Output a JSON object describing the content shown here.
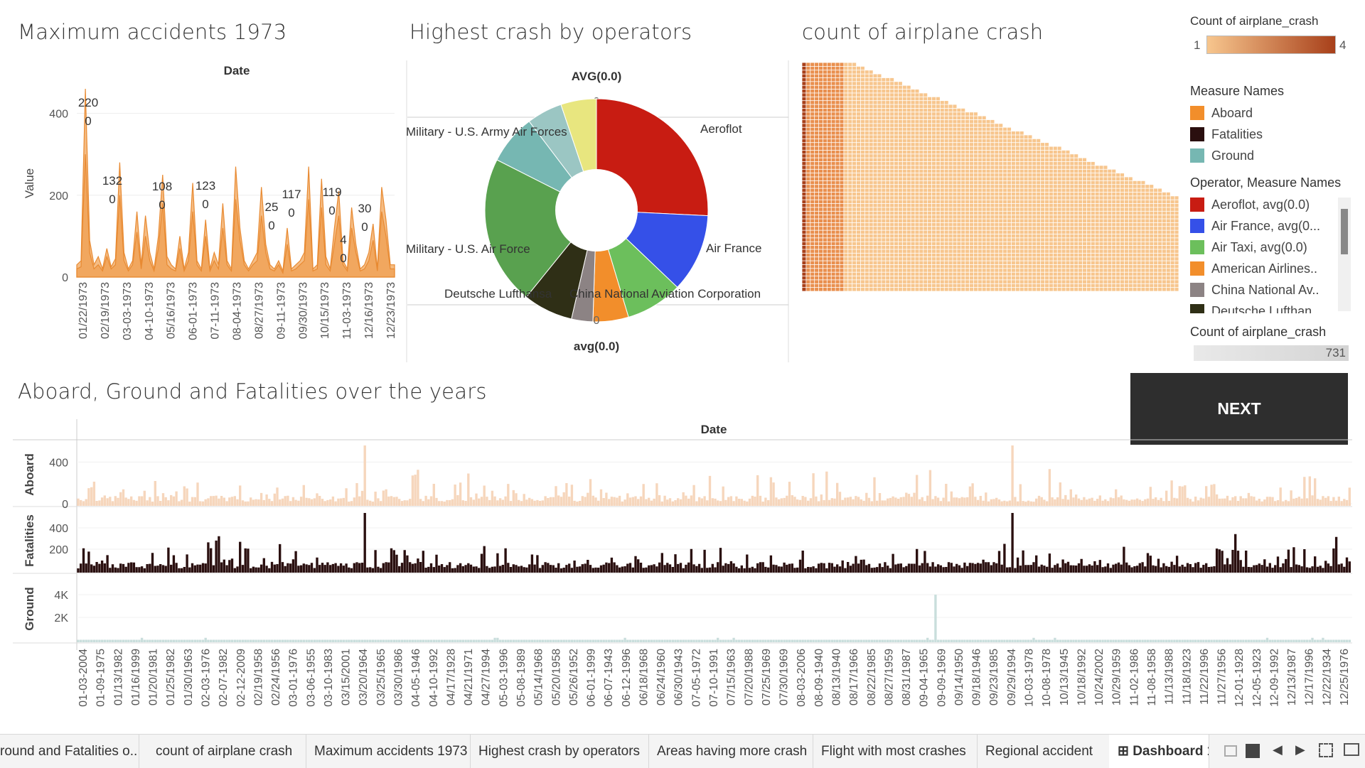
{
  "panels": {
    "max_accidents": {
      "title": "Maximum accidents 1973"
    },
    "operators": {
      "title": "Highest crash by operators"
    },
    "count_crash": {
      "title": "count of airplane crash"
    },
    "over_years": {
      "title": "Aboard, Ground and Fatalities over the years"
    }
  },
  "colors": {
    "accent_orange": "#F2A65A",
    "aboard": "#F28E2B",
    "fatalities": "#2A0F0F",
    "ground": "#76B7B2",
    "next_bg": "#2E2E2E"
  },
  "legend_count_color": {
    "title": "Count of airplane_crash",
    "min": "1",
    "max": "4"
  },
  "legend_measure": {
    "title": "Measure Names",
    "items": [
      {
        "label": "Aboard",
        "color": "#F28E2B"
      },
      {
        "label": "Fatalities",
        "color": "#2A0F0F"
      },
      {
        "label": "Ground",
        "color": "#76B7B2"
      }
    ]
  },
  "legend_operator": {
    "title": "Operator, Measure Names",
    "items": [
      {
        "label": "Aeroflot, avg(0.0)",
        "color": "#C81C12"
      },
      {
        "label": "Air France, avg(0...",
        "color": "#3550E8"
      },
      {
        "label": "Air Taxi, avg(0.0)",
        "color": "#6CBF5C"
      },
      {
        "label": "American Airlines..",
        "color": "#F28E2B"
      },
      {
        "label": "China National Av..",
        "color": "#8C8384"
      },
      {
        "label": "Deutsche Lufthan",
        "color": "#2F2F16"
      }
    ]
  },
  "legend_count_size": {
    "title": "Count of airplane_crash",
    "value": "731"
  },
  "next_button": {
    "label": "NEXT"
  },
  "tabs": [
    {
      "label": "round and Fatalities o...",
      "active": false
    },
    {
      "label": "count of airplane crash",
      "active": false
    },
    {
      "label": "Maximum accidents 1973",
      "active": false
    },
    {
      "label": "Highest crash by operators",
      "active": false
    },
    {
      "label": "Areas having more crash",
      "active": false
    },
    {
      "label": "Flight with most crashes",
      "active": false
    },
    {
      "label": "Regional accident",
      "active": false
    },
    {
      "label": "Dashboard 1",
      "active": true
    }
  ],
  "chart_data": [
    {
      "type": "area",
      "title": "",
      "header": "Date",
      "ylabel": "Value",
      "ylim": [
        0,
        460
      ],
      "yticks": [
        "0",
        "200",
        "400"
      ],
      "x_tick_labels": [
        "01/22/1973",
        "02/19/1973",
        "03-03-1973",
        "04-10-1973",
        "05/16/1973",
        "06-01-1973",
        "07-11-1973",
        "08-04-1973",
        "08/27/1973",
        "09-11-1973",
        "09/30/1973",
        "10/15/1973",
        "11-03-1973",
        "12/16/1973",
        "12/23/1973"
      ],
      "series": [
        {
          "values": [
            30,
            40,
            460,
            90,
            30,
            50,
            20,
            70,
            25,
            45,
            280,
            60,
            20,
            40,
            160,
            30,
            150,
            60,
            20,
            100,
            250,
            50,
            30,
            20,
            100,
            20,
            60,
            230,
            40,
            20,
            140,
            20,
            60,
            30,
            180,
            40,
            20,
            270,
            120,
            40,
            20,
            40,
            60,
            220,
            80,
            30,
            20,
            40,
            15,
            120,
            20,
            30,
            40,
            60,
            270,
            20,
            30,
            240,
            50,
            20,
            120,
            210,
            40,
            20,
            170,
            80,
            20,
            30,
            60,
            130,
            20,
            220,
            140,
            30,
            30
          ]
        },
        {
          "values": [
            20,
            25,
            300,
            60,
            20,
            30,
            15,
            50,
            20,
            30,
            200,
            40,
            15,
            30,
            110,
            20,
            100,
            40,
            15,
            70,
            180,
            30,
            20,
            15,
            70,
            15,
            40,
            160,
            30,
            15,
            100,
            15,
            40,
            20,
            120,
            30,
            15,
            190,
            90,
            30,
            15,
            30,
            40,
            150,
            60,
            20,
            15,
            30,
            10,
            80,
            15,
            20,
            30,
            40,
            190,
            15,
            20,
            170,
            30,
            15,
            80,
            150,
            30,
            15,
            120,
            60,
            15,
            20,
            40,
            90,
            15,
            160,
            100,
            20,
            20
          ]
        }
      ],
      "annotations": [
        {
          "value": "220",
          "sub": "0"
        },
        {
          "value": "132",
          "sub": "0"
        },
        {
          "value": "108",
          "sub": "0"
        },
        {
          "value": "123",
          "sub": "0"
        },
        {
          "value": "25",
          "sub": "0"
        },
        {
          "value": "117",
          "sub": "0"
        },
        {
          "value": "119",
          "sub": "0"
        },
        {
          "value": "4",
          "sub": "0"
        },
        {
          "value": "30",
          "sub": "0"
        }
      ]
    },
    {
      "type": "pie",
      "top_header": "AVG(0.0)",
      "bottom_header": "avg(0.0)",
      "top_zero": "0",
      "bottom_zero": "0",
      "slices": [
        {
          "label": "Aeroflot",
          "value": 25,
          "color": "#C81C12"
        },
        {
          "label": "Air France",
          "value": 11,
          "color": "#3550E8"
        },
        {
          "label": "China National Aviation Corporation",
          "value": 8,
          "color": "#6CBF5C"
        },
        {
          "label": "",
          "value": 5,
          "color": "#F28E2B"
        },
        {
          "label": "",
          "value": 3,
          "color": "#8C8384"
        },
        {
          "label": "Deutsche Lufthansa",
          "value": 7,
          "color": "#2F2F16"
        },
        {
          "label": "Military - U.S. Air Force",
          "value": 21,
          "color": "#59A14F"
        },
        {
          "label": "Military - U.S. Army Air Forces",
          "value": 7,
          "color": "#76B7B2"
        },
        {
          "label": "",
          "value": 5,
          "color": "#9BC6C3"
        },
        {
          "label": "",
          "value": 5,
          "color": "#E8E67F"
        }
      ]
    },
    {
      "type": "heatmap",
      "title": "count of airplane crash",
      "color_range": [
        "#F7C68E",
        "#A8401A"
      ],
      "rows": 60,
      "cols": 90
    },
    {
      "type": "bar",
      "header": "Date",
      "rows": [
        {
          "name": "Aboard",
          "ticks": [
            "0",
            "400"
          ],
          "ymax": 560,
          "color": "#F6D6BC",
          "peak": 560
        },
        {
          "name": "Fatalities",
          "ticks": [
            "200",
            "400"
          ],
          "ymax": 560,
          "color": "#2A0F0F",
          "peak": 540
        },
        {
          "name": "Ground",
          "ticks": [
            "2K",
            "4K"
          ],
          "ymax": 5500,
          "color": "#C9DEDC",
          "peak": 4000
        }
      ],
      "x_tick_labels": [
        "01-03-2004",
        "01-09-1975",
        "01/13/1982",
        "01/16/1999",
        "01/20/1981",
        "01/25/1982",
        "01/30/1963",
        "02-03-1976",
        "02-07-1982",
        "02-12-2009",
        "02/19/1958",
        "02/24/1956",
        "03-01-1976",
        "03-06-1955",
        "03-10-1983",
        "03/15/2001",
        "03/20/1964",
        "03/25/1965",
        "03/30/1986",
        "04-05-1946",
        "04-10-1992",
        "04/17/1928",
        "04/21/1971",
        "04/27/1994",
        "05-03-1996",
        "05-08-1989",
        "05/14/1968",
        "05/20/1958",
        "05/26/1952",
        "06-01-1999",
        "06-07-1943",
        "06-12-1996",
        "06/18/1968",
        "06/24/1960",
        "06/30/1943",
        "07-05-1972",
        "07-10-1991",
        "07/15/1963",
        "07/20/1988",
        "07/25/1969",
        "07/30/1969",
        "08-03-2006",
        "08-09-1940",
        "08/13/1940",
        "08/17/1966",
        "08/22/1985",
        "08/27/1959",
        "08/31/1987",
        "09-04-1965",
        "09-09-1969",
        "09/14/1950",
        "09/18/1946",
        "09/23/1985",
        "09/29/1994",
        "10-03-1978",
        "10-08-1978",
        "10/13/1945",
        "10/18/1992",
        "10/24/2002",
        "10/29/1959",
        "11-02-1986",
        "11-08-1958",
        "11/13/1988",
        "11/18/1923",
        "11/22/1996",
        "11/27/1956",
        "12-01-1928",
        "12-05-1923",
        "12-09-1992",
        "12/13/1987",
        "12/17/1996",
        "12/22/1934",
        "12/25/1976"
      ]
    }
  ]
}
